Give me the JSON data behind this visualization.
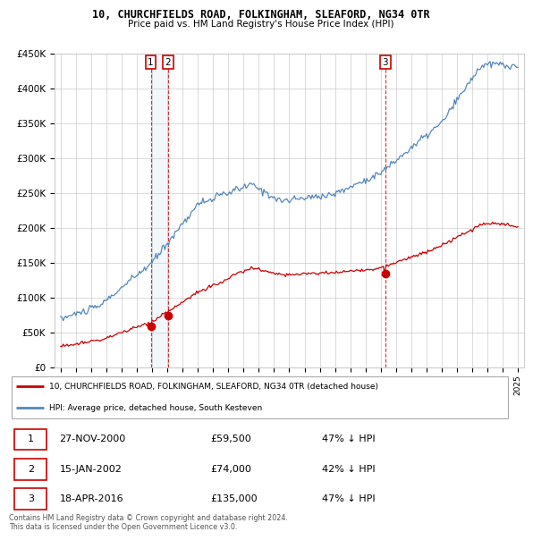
{
  "title": "10, CHURCHFIELDS ROAD, FOLKINGHAM, SLEAFORD, NG34 0TR",
  "subtitle": "Price paid vs. HM Land Registry's House Price Index (HPI)",
  "property_label": "10, CHURCHFIELDS ROAD, FOLKINGHAM, SLEAFORD, NG34 0TR (detached house)",
  "hpi_label": "HPI: Average price, detached house, South Kesteven",
  "footnote": "Contains HM Land Registry data © Crown copyright and database right 2024.\nThis data is licensed under the Open Government Licence v3.0.",
  "transactions": [
    {
      "num": 1,
      "date": "27-NOV-2000",
      "price": 59500,
      "pct": "47% ↓ HPI",
      "year": 2000.91
    },
    {
      "num": 2,
      "date": "15-JAN-2002",
      "price": 74000,
      "pct": "42% ↓ HPI",
      "year": 2002.04
    },
    {
      "num": 3,
      "date": "18-APR-2016",
      "price": 135000,
      "pct": "47% ↓ HPI",
      "year": 2016.29
    }
  ],
  "property_color": "#cc0000",
  "hpi_color": "#5588bb",
  "vline_color": "#cc0000",
  "shade_color": "#ddeeff",
  "ylim": [
    0,
    450000
  ],
  "yticks": [
    0,
    50000,
    100000,
    150000,
    200000,
    250000,
    300000,
    350000,
    400000,
    450000
  ],
  "xlim": [
    1994.6,
    2025.4
  ],
  "xticks": [
    1995,
    1996,
    1997,
    1998,
    1999,
    2000,
    2001,
    2002,
    2003,
    2004,
    2005,
    2006,
    2007,
    2008,
    2009,
    2010,
    2011,
    2012,
    2013,
    2014,
    2015,
    2016,
    2017,
    2018,
    2019,
    2020,
    2021,
    2022,
    2023,
    2024,
    2025
  ]
}
